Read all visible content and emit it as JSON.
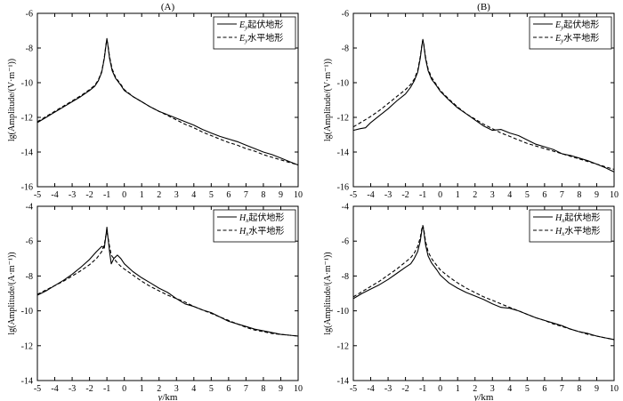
{
  "chart_data": [
    {
      "panel_label": "(A)",
      "type": "line",
      "ylabel": "lg(Amplitude/(V·m⁻¹))",
      "xlabel": "",
      "xlim": [
        -5,
        10
      ],
      "ylim": [
        -16,
        -6
      ],
      "xticks": [
        "-5",
        "-4",
        "-3",
        "-2",
        "-1",
        "0",
        "1",
        "2",
        "3",
        "4",
        "5",
        "6",
        "7",
        "8",
        "9",
        "10"
      ],
      "yticks": [
        "-6",
        "-8",
        "-10",
        "-12",
        "-14",
        "-16"
      ],
      "legend_position": "top-right",
      "series": [
        {
          "base": "E",
          "sub": "y",
          "suffix": "起伏地形",
          "dash": false,
          "x": [
            -5,
            -4.5,
            -4,
            -3.5,
            -3,
            -2.5,
            -2,
            -1.7,
            -1.5,
            -1.3,
            -1.15,
            -1.05,
            -1,
            -0.95,
            -0.85,
            -0.7,
            -0.5,
            -0.2,
            0,
            0.5,
            1,
            1.5,
            2,
            2.5,
            3,
            3.5,
            4,
            4.5,
            5,
            5.5,
            6,
            6.5,
            7,
            7.5,
            8,
            8.5,
            9,
            9.5,
            10
          ],
          "y": [
            -12.3,
            -12.0,
            -11.7,
            -11.4,
            -11.1,
            -10.8,
            -10.45,
            -10.2,
            -9.9,
            -9.4,
            -8.6,
            -7.8,
            -7.45,
            -7.8,
            -8.6,
            -9.3,
            -9.75,
            -10.15,
            -10.45,
            -10.8,
            -11.1,
            -11.4,
            -11.65,
            -11.85,
            -12.05,
            -12.25,
            -12.45,
            -12.7,
            -12.9,
            -13.1,
            -13.25,
            -13.4,
            -13.6,
            -13.8,
            -14.0,
            -14.15,
            -14.35,
            -14.55,
            -14.75
          ]
        },
        {
          "base": "E",
          "sub": "y",
          "suffix": "水平地形",
          "dash": true,
          "x": [
            -5,
            -4.5,
            -4,
            -3.5,
            -3,
            -2.5,
            -2,
            -1.7,
            -1.5,
            -1.3,
            -1.15,
            -1.05,
            -1,
            -0.95,
            -0.85,
            -0.7,
            -0.5,
            -0.2,
            0,
            0.5,
            1,
            1.5,
            2,
            2.5,
            3,
            3.5,
            4,
            4.5,
            5,
            5.5,
            6,
            6.5,
            7,
            7.5,
            8,
            8.5,
            9,
            9.5,
            10
          ],
          "y": [
            -12.25,
            -11.95,
            -11.65,
            -11.35,
            -11.05,
            -10.75,
            -10.4,
            -10.15,
            -9.85,
            -9.35,
            -8.55,
            -7.75,
            -7.55,
            -7.75,
            -8.5,
            -9.2,
            -9.7,
            -10.1,
            -10.4,
            -10.8,
            -11.1,
            -11.4,
            -11.65,
            -11.9,
            -12.15,
            -12.4,
            -12.6,
            -12.85,
            -13.05,
            -13.25,
            -13.45,
            -13.6,
            -13.8,
            -13.95,
            -14.15,
            -14.3,
            -14.45,
            -14.6,
            -14.75
          ]
        }
      ]
    },
    {
      "panel_label": "(B)",
      "type": "line",
      "ylabel": "lg(Amplitude/(V·m⁻¹))",
      "xlabel": "",
      "xlim": [
        -5,
        10
      ],
      "ylim": [
        -16,
        -6
      ],
      "xticks": [
        "-5",
        "-4",
        "-3",
        "-2",
        "-1",
        "0",
        "1",
        "2",
        "3",
        "4",
        "5",
        "6",
        "7",
        "8",
        "9",
        "10"
      ],
      "yticks": [
        "-6",
        "-8",
        "-10",
        "-12",
        "-14",
        "-16"
      ],
      "legend_position": "top-right",
      "series": [
        {
          "base": "E",
          "sub": "y",
          "suffix": "起伏地形",
          "dash": false,
          "x": [
            -5,
            -4.6,
            -4.3,
            -4,
            -3.5,
            -3,
            -2.5,
            -2,
            -1.7,
            -1.5,
            -1.3,
            -1.15,
            -1.05,
            -1,
            -0.95,
            -0.85,
            -0.7,
            -0.5,
            -0.2,
            0,
            0.5,
            1,
            1.5,
            2,
            2.5,
            3,
            3.5,
            4,
            4.5,
            5,
            5.5,
            6,
            6.5,
            7,
            7.5,
            8,
            8.5,
            9,
            9.5,
            10
          ],
          "y": [
            -12.75,
            -12.65,
            -12.6,
            -12.3,
            -11.9,
            -11.5,
            -11.05,
            -10.65,
            -10.25,
            -9.9,
            -9.4,
            -8.6,
            -7.8,
            -7.5,
            -7.8,
            -8.6,
            -9.3,
            -9.8,
            -10.2,
            -10.5,
            -11.0,
            -11.45,
            -11.8,
            -12.15,
            -12.5,
            -12.75,
            -12.7,
            -12.9,
            -13.05,
            -13.3,
            -13.55,
            -13.7,
            -13.85,
            -14.1,
            -14.2,
            -14.35,
            -14.5,
            -14.7,
            -14.9,
            -15.15
          ]
        },
        {
          "base": "E",
          "sub": "y",
          "suffix": "水平地形",
          "dash": true,
          "x": [
            -5,
            -4.5,
            -4,
            -3.5,
            -3,
            -2.5,
            -2,
            -1.7,
            -1.5,
            -1.3,
            -1.15,
            -1.05,
            -1,
            -0.95,
            -0.85,
            -0.7,
            -0.5,
            -0.2,
            0,
            0.5,
            1,
            1.5,
            2,
            2.5,
            3,
            3.5,
            4,
            4.5,
            5,
            5.5,
            6,
            6.5,
            7,
            7.5,
            8,
            8.5,
            9,
            9.5,
            10
          ],
          "y": [
            -12.55,
            -12.25,
            -11.95,
            -11.6,
            -11.2,
            -10.8,
            -10.4,
            -10.1,
            -9.8,
            -9.3,
            -8.5,
            -7.75,
            -7.55,
            -7.75,
            -8.5,
            -9.2,
            -9.7,
            -10.15,
            -10.45,
            -10.95,
            -11.4,
            -11.8,
            -12.1,
            -12.4,
            -12.65,
            -12.9,
            -13.1,
            -13.3,
            -13.5,
            -13.65,
            -13.8,
            -13.95,
            -14.1,
            -14.25,
            -14.4,
            -14.55,
            -14.7,
            -14.85,
            -15.0
          ]
        }
      ]
    },
    {
      "panel_label": "",
      "type": "line",
      "ylabel": "lg(Amplitude/(A·m⁻¹))",
      "xlabel": "y/km",
      "xlim": [
        -5,
        10
      ],
      "ylim": [
        -14,
        -4
      ],
      "xticks": [
        "-5",
        "-4",
        "-3",
        "-2",
        "-1",
        "0",
        "1",
        "2",
        "3",
        "4",
        "5",
        "6",
        "7",
        "8",
        "9",
        "10"
      ],
      "yticks": [
        "-4",
        "-6",
        "-8",
        "-10",
        "-12",
        "-14"
      ],
      "legend_position": "top-right",
      "series": [
        {
          "base": "H",
          "sub": "x",
          "suffix": "起伏地形",
          "dash": false,
          "x": [
            -5,
            -4.5,
            -4,
            -3.5,
            -3,
            -2.5,
            -2,
            -1.6,
            -1.3,
            -1.15,
            -1.05,
            -1,
            -0.95,
            -0.85,
            -0.75,
            -0.6,
            -0.4,
            -0.2,
            0,
            0.5,
            1,
            1.5,
            2,
            2.5,
            3,
            3.5,
            4,
            4.5,
            5,
            5.5,
            6,
            6.5,
            7,
            7.5,
            8,
            8.5,
            9,
            9.5,
            10
          ],
          "y": [
            -9.1,
            -8.85,
            -8.55,
            -8.25,
            -7.9,
            -7.5,
            -7.05,
            -6.6,
            -6.3,
            -6.4,
            -5.6,
            -5.2,
            -5.7,
            -6.6,
            -7.3,
            -7.0,
            -6.8,
            -7.0,
            -7.3,
            -7.75,
            -8.1,
            -8.4,
            -8.7,
            -8.95,
            -9.3,
            -9.6,
            -9.75,
            -9.95,
            -10.1,
            -10.35,
            -10.6,
            -10.75,
            -10.9,
            -11.05,
            -11.15,
            -11.25,
            -11.35,
            -11.4,
            -11.45
          ]
        },
        {
          "base": "H",
          "sub": "x",
          "suffix": "水平地形",
          "dash": true,
          "x": [
            -5,
            -4.5,
            -4,
            -3.5,
            -3,
            -2.5,
            -2,
            -1.6,
            -1.3,
            -1.15,
            -1.05,
            -1,
            -0.95,
            -0.85,
            -0.75,
            -0.6,
            -0.4,
            -0.2,
            0,
            0.5,
            1,
            1.5,
            2,
            2.5,
            3,
            3.5,
            4,
            4.5,
            5,
            5.5,
            6,
            6.5,
            7,
            7.5,
            8,
            8.5,
            9,
            9.5,
            10
          ],
          "y": [
            -9.05,
            -8.8,
            -8.55,
            -8.3,
            -8.0,
            -7.7,
            -7.35,
            -7.0,
            -6.6,
            -6.2,
            -5.6,
            -5.5,
            -5.7,
            -6.3,
            -6.8,
            -7.0,
            -7.25,
            -7.45,
            -7.6,
            -7.95,
            -8.3,
            -8.6,
            -8.85,
            -9.1,
            -9.3,
            -9.5,
            -9.75,
            -9.95,
            -10.15,
            -10.35,
            -10.55,
            -10.75,
            -10.95,
            -11.1,
            -11.2,
            -11.3,
            -11.35,
            -11.4,
            -11.45
          ]
        }
      ]
    },
    {
      "panel_label": "",
      "type": "line",
      "ylabel": "lg(Amplitude/(A·m⁻¹))",
      "xlabel": "y/km",
      "xlim": [
        -5,
        10
      ],
      "ylim": [
        -14,
        -4
      ],
      "xticks": [
        "-5",
        "-4",
        "-3",
        "-2",
        "-1",
        "0",
        "1",
        "2",
        "3",
        "4",
        "5",
        "6",
        "7",
        "8",
        "9",
        "10"
      ],
      "yticks": [
        "-4",
        "-6",
        "-8",
        "-10",
        "-12",
        "-14"
      ],
      "legend_position": "top-right",
      "series": [
        {
          "base": "H",
          "sub": "x",
          "suffix": "起伏地形",
          "dash": false,
          "x": [
            -5,
            -4.5,
            -4,
            -3.5,
            -3,
            -2.5,
            -2,
            -1.7,
            -1.5,
            -1.3,
            -1.15,
            -1.05,
            -1,
            -0.95,
            -0.85,
            -0.7,
            -0.5,
            -0.2,
            0,
            0.5,
            1,
            1.5,
            2,
            2.5,
            3,
            3.5,
            4,
            4.5,
            5,
            5.5,
            6,
            6.5,
            7,
            7.5,
            8,
            8.5,
            9,
            9.5,
            10
          ],
          "y": [
            -9.3,
            -9.0,
            -8.75,
            -8.5,
            -8.2,
            -7.85,
            -7.5,
            -7.3,
            -7.0,
            -6.6,
            -6.0,
            -5.3,
            -5.15,
            -5.4,
            -6.2,
            -6.85,
            -7.25,
            -7.65,
            -7.95,
            -8.4,
            -8.7,
            -8.95,
            -9.15,
            -9.35,
            -9.6,
            -9.8,
            -9.85,
            -10.0,
            -10.2,
            -10.4,
            -10.55,
            -10.7,
            -10.85,
            -11.05,
            -11.2,
            -11.3,
            -11.45,
            -11.55,
            -11.65
          ]
        },
        {
          "base": "H",
          "sub": "x",
          "suffix": "水平地形",
          "dash": true,
          "x": [
            -5,
            -4.5,
            -4,
            -3.5,
            -3,
            -2.5,
            -2,
            -1.7,
            -1.5,
            -1.3,
            -1.15,
            -1.05,
            -1,
            -0.95,
            -0.85,
            -0.7,
            -0.5,
            -0.2,
            0,
            0.5,
            1,
            1.5,
            2,
            2.5,
            3,
            3.5,
            4,
            4.5,
            5,
            5.5,
            6,
            6.5,
            7,
            7.5,
            8,
            8.5,
            9,
            9.5,
            10
          ],
          "y": [
            -9.2,
            -8.9,
            -8.6,
            -8.3,
            -7.95,
            -7.6,
            -7.2,
            -6.95,
            -6.7,
            -6.3,
            -5.8,
            -5.2,
            -5.1,
            -5.3,
            -6.0,
            -6.6,
            -7.0,
            -7.4,
            -7.65,
            -8.05,
            -8.4,
            -8.7,
            -8.95,
            -9.2,
            -9.4,
            -9.6,
            -9.8,
            -10.0,
            -10.2,
            -10.4,
            -10.55,
            -10.75,
            -10.9,
            -11.05,
            -11.2,
            -11.35,
            -11.45,
            -11.55,
            -11.65
          ]
        }
      ]
    }
  ]
}
